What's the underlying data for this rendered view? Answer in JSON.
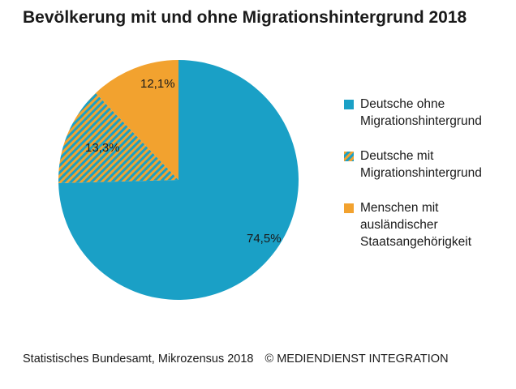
{
  "chart_data": {
    "type": "pie",
    "title": "Bevölkerung mit und ohne Migrationshintergrund 2018",
    "slices": [
      {
        "label": "Deutsche ohne Migrationshintergrund",
        "legend_lines": [
          "Deutsche ohne",
          "Migrationshintergrund"
        ],
        "value": 74.5,
        "value_label": "74,5%",
        "color": "#1aa0c6",
        "pattern": "solid"
      },
      {
        "label": "Deutsche mit Migrationshintergrund",
        "legend_lines": [
          "Deutsche mit",
          "Migrationshintergrund"
        ],
        "value": 13.3,
        "value_label": "13,3%",
        "color": "#6aa590",
        "pattern": "hatched"
      },
      {
        "label": "Menschen mit ausländischer Staatsangehörigkeit",
        "legend_lines": [
          "Menschen mit",
          "ausländischer",
          "Staatsangehörigkeit"
        ],
        "value": 12.1,
        "value_label": "12,1%",
        "color": "#f2a22f",
        "pattern": "solid"
      }
    ],
    "legend_position": "right"
  },
  "footer": {
    "source": "Statistisches Bundesamt, Mikrozensus 2018",
    "copyright": "© MEDIENDIENST INTEGRATION"
  },
  "colors": {
    "hatch_a": "#1aa0c6",
    "hatch_b": "#f2a22f"
  }
}
